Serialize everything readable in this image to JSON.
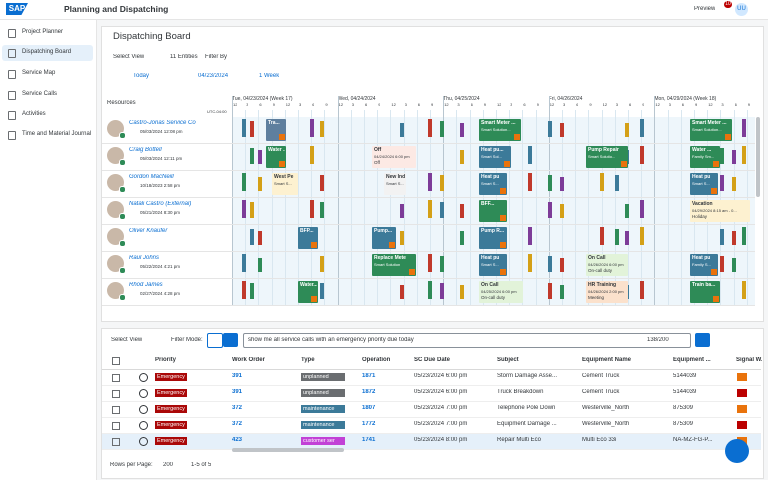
{
  "shell": {
    "logo": "SAP",
    "title": "Planning and Dispatching",
    "preview": "Preview",
    "badge": "10",
    "avatar": "UU"
  },
  "nav": [
    "Project Planner",
    "Dispatching Board",
    "Service Map",
    "Service Calls",
    "Activities",
    "Time and Material Journal"
  ],
  "board": {
    "title": "Dispatching Board",
    "select_view": "Select View",
    "entities": "11 Entities",
    "filter_by": "Filter By",
    "today": "Today",
    "date": "04/23/2024",
    "range": "1 Week",
    "resources": "Resources",
    "timezone": "UTC-04:00",
    "days": [
      "Tue, 04/23/2024 (Week 17)",
      "Wed, 04/24/2024",
      "Thu, 04/25/2024",
      "Fri, 04/26/2024",
      "Mon, 04/29/2024 (Week 18)"
    ],
    "hours": [
      "12",
      "3",
      "6",
      "9",
      "12",
      "3",
      "6",
      "9"
    ],
    "rows": [
      {
        "name": "Castro-Jonas Service Co",
        "date": "05/03/2024 12:08 pm",
        "blocks": [
          {
            "title": "Tra..."
          },
          {
            "title": "Smart Meter ...",
            "sub": "Smart Solution..."
          },
          {
            "title": "Smart Meter ...",
            "sub": "Smart Solution..."
          }
        ]
      },
      {
        "name": "Craig Bottell",
        "date": "05/03/2024 12:11 pm",
        "blocks": [
          {
            "title": "Water ..."
          },
          {
            "title": "Off",
            "sub": "04/24/2024 6:00 pm",
            "sub2": "Off"
          },
          {
            "title": "Heat pu...",
            "sub": "Smart Sol..."
          },
          {
            "title": "Pump Repair",
            "sub": "Smart Solutio..."
          },
          {
            "title": "Water ...",
            "sub": "Family Sm..."
          }
        ]
      },
      {
        "name": "Gordon MacNeill",
        "date": "10/18/2023 2:58 pm",
        "blocks": [
          {
            "title": "West Pe",
            "sub": "Smart S..."
          },
          {
            "title": "New Ind",
            "sub": "Smart S..."
          },
          {
            "title": "Heat pu",
            "sub": "Smart S..."
          },
          {
            "title": "Heat pu",
            "sub": "Smart S..."
          }
        ]
      },
      {
        "name": "Natali Castro (External)",
        "date": "05/21/2024 8:30 pm",
        "blocks": [
          {
            "title": "BFF..."
          },
          {
            "title": "Vacation",
            "sub": "04/29/2024 8:15 am - 0...",
            "sub2": "Holiday"
          }
        ]
      },
      {
        "name": "Oliver Knaufer",
        "blocks": [
          {
            "title": "BFP..."
          },
          {
            "title": "Pump..."
          },
          {
            "title": "Pump R..."
          }
        ]
      },
      {
        "name": "Raul Johns",
        "date": "05/22/2024 4:21 pm",
        "blocks": [
          {
            "title": "Replace Mete",
            "sub": "Smart Solution"
          },
          {
            "title": "Heat pu",
            "sub": "Smart S..."
          },
          {
            "title": "On Call",
            "sub": "04/26/2024 6:00 pm",
            "sub2": "On-call duty"
          },
          {
            "title": "Heat pu",
            "sub": "Family S..."
          }
        ]
      },
      {
        "name": "Rhod James",
        "date": "02/27/2024 4:28 pm",
        "blocks": [
          {
            "title": "Water..."
          },
          {
            "title": "On Call",
            "sub": "04/25/2024 6:00 pm",
            "sub2": "On-call duty"
          },
          {
            "title": "HR Training",
            "sub": "04/26/2024 2:00 pm",
            "sub2": "Meeting"
          },
          {
            "title": "Train ba..."
          }
        ]
      }
    ]
  },
  "table": {
    "select_view": "Select View",
    "filter_mode": "Filter Mode:",
    "query": "show me all service calls with an emergency priority due today",
    "count": "138/200",
    "columns": [
      "Priority",
      "Work Order",
      "Type",
      "Operation",
      "SC Due Date",
      "Subject",
      "Equipment Name",
      "Equipment ...",
      "Signal W..."
    ],
    "rows": [
      [
        "Emergency",
        "391",
        "unplanned",
        "1871",
        "05/23/2024 6:00 pm",
        "Storm Damage Asse...",
        "Cement Truck",
        "5144039"
      ],
      [
        "Emergency",
        "391",
        "unplanned",
        "1872",
        "05/23/2024 6:00 pm",
        "Truck Breakdown",
        "Cement Truck",
        "5144039"
      ],
      [
        "Emergency",
        "372",
        "maintenance",
        "1807",
        "05/23/2024 7:00 pm",
        "Telephone Pole Down",
        "Westerville_North",
        "875309"
      ],
      [
        "Emergency",
        "372",
        "maintenance",
        "1772",
        "05/23/2024 7:00 pm",
        "Equipment Damage ...",
        "Westerville_North",
        "875309"
      ],
      [
        "Emergency",
        "423",
        "customer ser",
        "1741",
        "05/23/2024 8:00 pm",
        "Repair Multi Eco",
        "Multi Eco 33i",
        "NA-MZ-FG-P..."
      ]
    ],
    "rows_per_page": "Rows per Page:",
    "page_size": "200",
    "paging": "1-5 of 5"
  }
}
